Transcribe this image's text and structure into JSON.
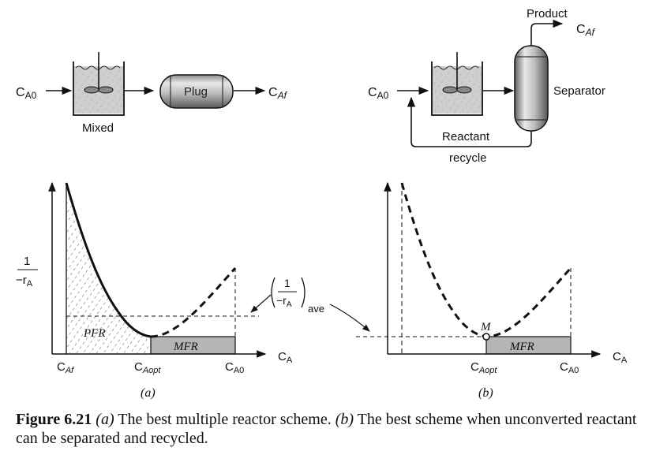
{
  "panel_a": {
    "inlet_label": "C",
    "inlet_sub": "A0",
    "mixed_label": "Mixed",
    "plug_label": "Plug",
    "outlet_label": "C",
    "outlet_sub": "Af",
    "y_label_num": "1",
    "y_label_den": "−r",
    "y_label_den_sub": "A",
    "pfr_label": "PFR",
    "mfr_label": "MFR",
    "tick_caf": "C",
    "tick_caf_sub": "Af",
    "tick_caopt": "C",
    "tick_caopt_sub": "Aopt",
    "tick_ca0": "C",
    "tick_ca0_sub": "A0",
    "x_axis_label": "C",
    "x_axis_sub": "A",
    "ave_num": "1",
    "ave_den": "−r",
    "ave_den_sub": "A",
    "ave_sub": "ave",
    "panel_letter": "(a)"
  },
  "panel_b": {
    "inlet_label": "C",
    "inlet_sub": "A0",
    "product_label": "Product",
    "product_conc": "C",
    "product_conc_sub": "Af",
    "separator_label": "Separator",
    "recycle_line1": "Reactant",
    "recycle_line2": "recycle",
    "point_label": "M",
    "mfr_label": "MFR",
    "tick_caopt": "C",
    "tick_caopt_sub": "Aopt",
    "tick_ca0": "C",
    "tick_ca0_sub": "A0",
    "x_axis_label": "C",
    "x_axis_sub": "A",
    "panel_letter": "(b)"
  },
  "caption": {
    "fig_label": "Figure 6.21",
    "part_a": "(a)",
    "text_a": " The best multiple reactor scheme. ",
    "part_b": "(b)",
    "text_b": " The best scheme when unconverted reactant can be separated and recycled."
  },
  "colors": {
    "shade": "#b5b5b5",
    "ink": "#1a1a1a"
  }
}
